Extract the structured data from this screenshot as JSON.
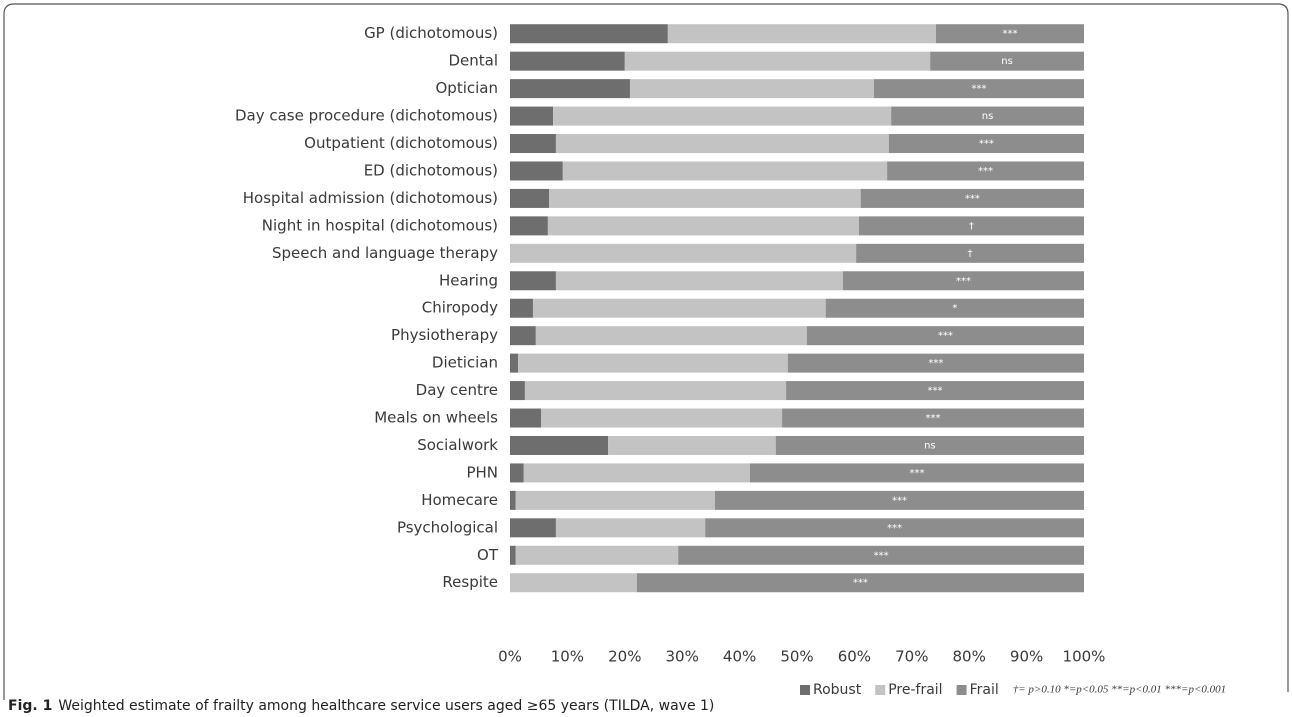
{
  "chart_data": {
    "type": "stacked_bar_horizontal",
    "categories": [
      "GP (dichotomous)",
      "Dental",
      "Optician",
      "Day case procedure (dichotomous)",
      "Outpatient (dichotomous)",
      "ED (dichotomous)",
      "Hospital admission (dichotomous)",
      "Night in hospital (dichotomous)",
      "Speech and language therapy",
      "Hearing",
      "Chiropody",
      "Physiotherapy",
      "Dietician",
      "Day centre",
      "Meals on wheels",
      "Socialwork",
      "PHN",
      "Homecare",
      "Psychological",
      "OT",
      "Respite"
    ],
    "series": [
      {
        "name": "Robust",
        "color": "#6e6e6e",
        "values": [
          27.5,
          20.0,
          20.9,
          7.5,
          8.0,
          9.2,
          6.8,
          6.6,
          0,
          8.0,
          4.0,
          4.5,
          1.4,
          2.6,
          5.4,
          17.1,
          2.4,
          1.0,
          8.0,
          1.0,
          0
        ]
      },
      {
        "name": "Pre-frail",
        "color": "#c3c3c3",
        "values": [
          46.7,
          53.2,
          42.5,
          58.9,
          58.0,
          56.5,
          54.3,
          54.2,
          60.3,
          50.0,
          51.0,
          47.2,
          47.0,
          45.5,
          42.0,
          29.2,
          39.4,
          34.7,
          26.0,
          28.3,
          22.1
        ]
      },
      {
        "name": "Frail",
        "color": "#8d8d8d",
        "values": [
          25.8,
          26.8,
          36.6,
          33.6,
          34.0,
          34.3,
          38.9,
          39.2,
          39.7,
          42.0,
          45.0,
          48.3,
          51.6,
          51.9,
          52.6,
          53.7,
          58.2,
          64.3,
          66.0,
          70.7,
          77.9
        ]
      }
    ],
    "significance": [
      "***",
      "ns",
      "***",
      "ns",
      "***",
      "***",
      "***",
      "†",
      "†",
      "***",
      "*",
      "***",
      "***",
      "***",
      "***",
      "ns",
      "***",
      "***",
      "***",
      "***",
      "***"
    ],
    "significance_note": "†= p>0.10   *=p<0.05   **=p<0.01   ***=p<0.001",
    "xlim": [
      0,
      100
    ],
    "xticks": [
      {
        "value": 0,
        "label": "0%"
      },
      {
        "value": 10,
        "label": "10%"
      },
      {
        "value": 20,
        "label": "20%"
      },
      {
        "value": 30,
        "label": "30%"
      },
      {
        "value": 40,
        "label": "40%"
      },
      {
        "value": 50,
        "label": "50%"
      },
      {
        "value": 60,
        "label": "60%"
      },
      {
        "value": 70,
        "label": "70%"
      },
      {
        "value": 80,
        "label": "80%"
      },
      {
        "value": 90,
        "label": "90%"
      },
      {
        "value": 100,
        "label": "100%"
      }
    ],
    "grid": false,
    "legend": "bottom",
    "caption_label": "Fig. 1",
    "caption": "Weighted estimate of frailty among healthcare service users aged ≥65 years (TILDA, wave 1)"
  }
}
